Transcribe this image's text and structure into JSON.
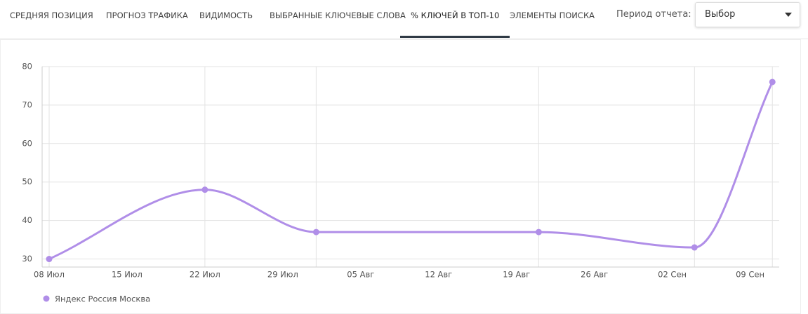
{
  "tabs": [
    "СРЕДНЯЯ ПОЗИЦИЯ",
    "ПРОГНОЗ ТРАФИКА",
    "ВИДИМОСТЬ",
    "ВЫБРАННЫЕ КЛЮЧЕВЫЕ СЛОВА",
    "% КЛЮЧЕЙ В ТОП-10",
    "ЭЛЕМЕНТЫ ПОИСКА"
  ],
  "active_tab": 4,
  "period_label": "Период отчета:",
  "period_select": "Выбор",
  "chart_data": {
    "type": "line",
    "x": [
      "08 Июл",
      "22 Июл",
      "01 Авг",
      "21 Авг",
      "04 Сен",
      "11 Сен"
    ],
    "xticks": [
      "08 Июл",
      "15 Июл",
      "22 Июл",
      "29 Июл",
      "05 Авг",
      "12 Авг",
      "19 Авг",
      "26 Авг",
      "02 Сен",
      "09 Сен"
    ],
    "ylim": [
      29,
      80
    ],
    "yticks": [
      30,
      40,
      50,
      60,
      70,
      80
    ],
    "grid": true,
    "series": [
      {
        "name": "Яндекс Россия Москва",
        "color": "#b08ee8",
        "values": [
          30,
          48,
          37,
          37,
          33,
          76
        ]
      }
    ]
  }
}
